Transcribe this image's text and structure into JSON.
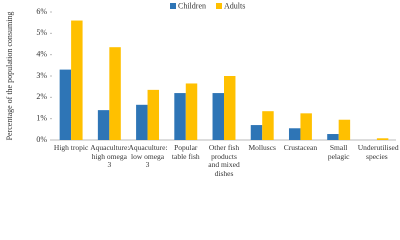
{
  "chart_data": {
    "type": "bar",
    "y_label": "Percentage of the population consuming",
    "categories": [
      "High tropic",
      "Aquaculture: high omega 3",
      "Aquaculture: low omega 3",
      "Popular table fish",
      "Other fish products and mixed dishes",
      "Molluscs",
      "Crustacean",
      "Small pelagic",
      "Underutilised species"
    ],
    "series": [
      {
        "name": "Children",
        "color": "#2e75b6",
        "values": [
          3.3,
          1.4,
          1.65,
          2.2,
          2.2,
          0.7,
          0.55,
          0.28,
          0.0
        ]
      },
      {
        "name": "Adults",
        "color": "#ffc000",
        "values": [
          5.6,
          4.35,
          2.35,
          2.65,
          3.0,
          1.35,
          1.25,
          0.95,
          0.08
        ]
      }
    ],
    "ylim": [
      0,
      6
    ],
    "yticks": [
      {
        "value": 0,
        "label": "0%"
      },
      {
        "value": 1,
        "label": "1%"
      },
      {
        "value": 2,
        "label": "2%"
      },
      {
        "value": 3,
        "label": "3%"
      },
      {
        "value": 4,
        "label": "4%"
      },
      {
        "value": 5,
        "label": "5%"
      },
      {
        "value": 6,
        "label": "6%"
      }
    ],
    "legend": "top"
  }
}
